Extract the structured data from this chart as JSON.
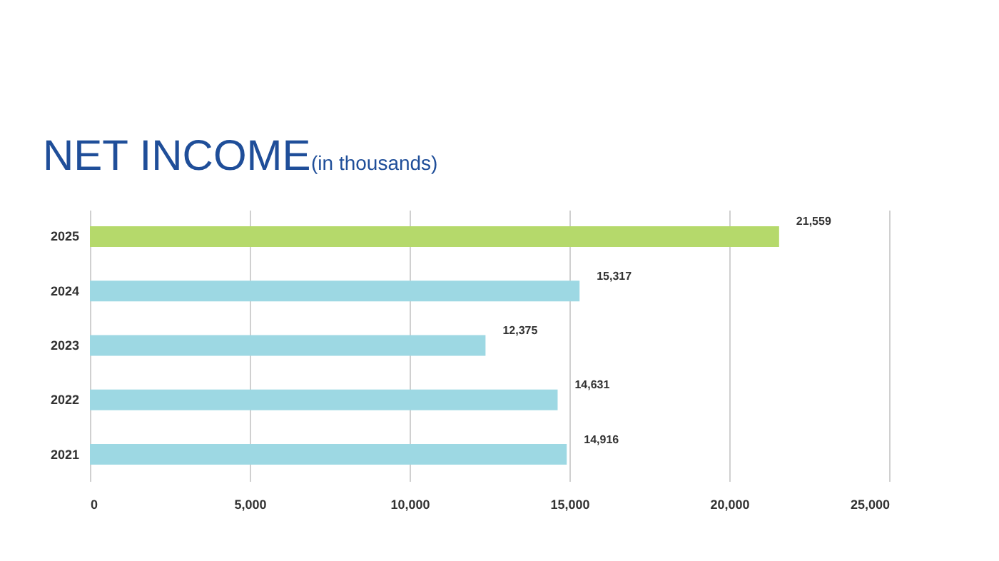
{
  "chart_data": {
    "type": "bar",
    "orientation": "horizontal",
    "title": "NET INCOME",
    "subtitle": "(in thousands)",
    "categories": [
      "2025",
      "2024",
      "2023",
      "2022",
      "2021"
    ],
    "values": [
      21559,
      15317,
      12375,
      14631,
      14916
    ],
    "colors": [
      "#b5d96b",
      "#9dd8e3",
      "#9dd8e3",
      "#9dd8e3",
      "#9dd8e3"
    ],
    "value_labels": [
      "21,559",
      "15,317",
      "12,375",
      "14,631",
      "14,916"
    ],
    "xlim": [
      0,
      25000
    ],
    "xticks": [
      0,
      {
        "value": 5000,
        "label": "5,000"
      },
      {
        "value": 10000,
        "label": "10,000"
      },
      {
        "value": 15000,
        "label": "15,000"
      },
      {
        "value": 20000,
        "label": "20,000"
      },
      {
        "value": 25000,
        "label": "25,000"
      }
    ],
    "grid": "x",
    "legend": false
  }
}
